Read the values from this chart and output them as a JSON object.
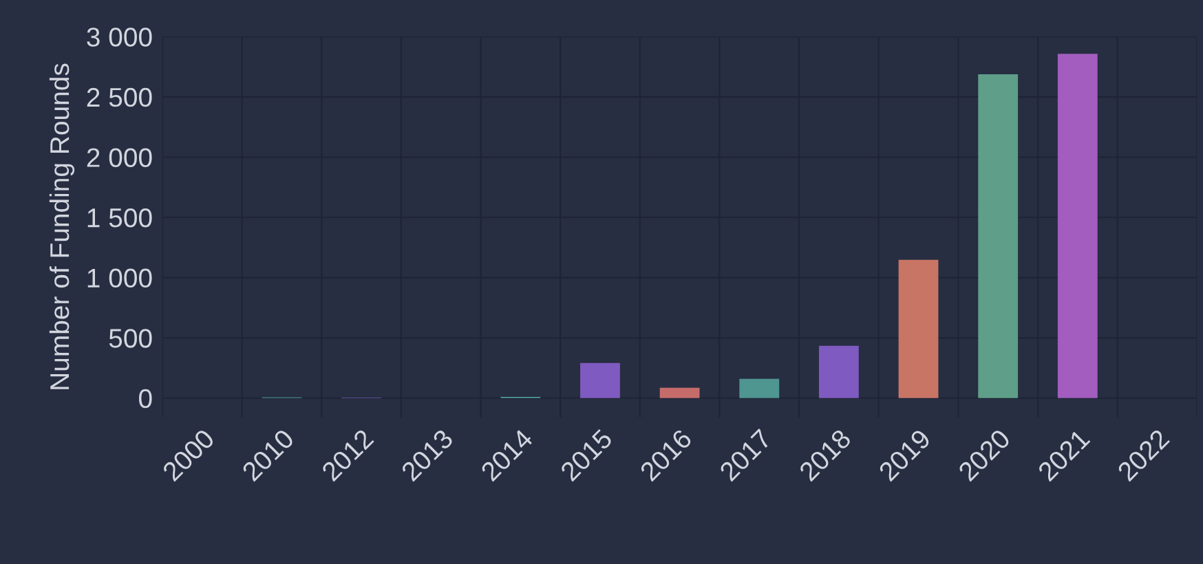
{
  "chart_data": {
    "type": "bar",
    "ylabel": "Number of Funding Rounds",
    "categories": [
      "2000",
      "2010",
      "2012",
      "2013",
      "2014",
      "2015",
      "2016",
      "2017",
      "2018",
      "2019",
      "2020",
      "2021",
      "2022"
    ],
    "values": [
      0,
      6,
      5,
      0,
      10,
      291,
      86,
      160,
      434,
      1147,
      2687,
      2858,
      0
    ],
    "colors": [
      "#7f5ac0",
      "#4f9a98",
      "#7b5cc0",
      "#7f5ac0",
      "#4f9a98",
      "#7f5ac0",
      "#c56c6a",
      "#4f9590",
      "#7f5ac0",
      "#c87566",
      "#5f9e88",
      "#a25dbf",
      "#7f5ac0"
    ],
    "ylim": [
      -160,
      3000
    ],
    "yticks": [
      0,
      500,
      {
        "value": 1000,
        "label": "1 000"
      },
      {
        "value": 1500,
        "label": "1 500"
      },
      {
        "value": 2000,
        "label": "2 000"
      },
      {
        "value": 2500,
        "label": "2 500"
      },
      {
        "value": 3000,
        "label": "3 000"
      }
    ],
    "grid": true
  }
}
